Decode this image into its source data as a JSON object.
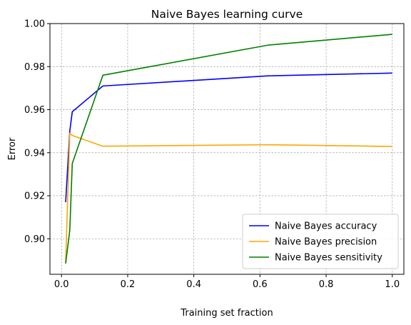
{
  "chart_data": {
    "type": "line",
    "title": "Naive Bayes learning curve",
    "xlabel": "Training set fraction",
    "ylabel": "Error",
    "xlim": [
      -0.035,
      1.035
    ],
    "ylim": [
      0.8835,
      1.0
    ],
    "xticks": [
      0.0,
      0.2,
      0.4,
      0.6,
      0.8,
      1.0
    ],
    "xtick_labels": [
      "0.0",
      "0.2",
      "0.4",
      "0.6",
      "0.8",
      "1.0"
    ],
    "yticks": [
      0.9,
      0.92,
      0.94,
      0.96,
      0.98,
      1.0
    ],
    "ytick_labels": [
      "0.90",
      "0.92",
      "0.94",
      "0.96",
      "0.98",
      "1.00"
    ],
    "grid": true,
    "legend_position": "lower-right",
    "x": [
      0.0125,
      0.025,
      0.0325,
      0.125,
      0.625,
      1.0
    ],
    "series": [
      {
        "name": "Naive Bayes accuracy",
        "color": "#0000ff",
        "values": [
          0.917,
          0.95,
          0.959,
          0.971,
          0.9757,
          0.977
        ]
      },
      {
        "name": "Naive Bayes precision",
        "color": "#ffa500",
        "values": [
          0.889,
          0.949,
          0.948,
          0.943,
          0.9437,
          0.9429
        ]
      },
      {
        "name": "Naive Bayes sensitivity",
        "color": "#008000",
        "values": [
          0.8885,
          0.904,
          0.935,
          0.976,
          0.99,
          0.995
        ]
      }
    ]
  }
}
